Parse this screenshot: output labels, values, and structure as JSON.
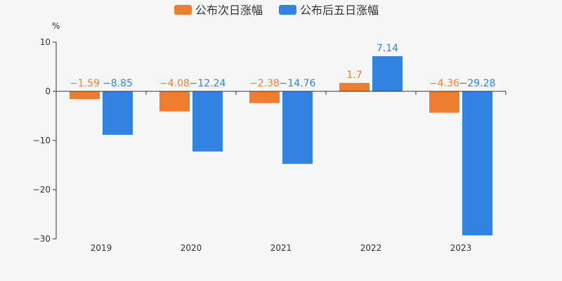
{
  "chart_data": {
    "type": "bar",
    "y_unit": "%",
    "categories": [
      "2019",
      "2020",
      "2021",
      "2022",
      "2023"
    ],
    "series": [
      {
        "name": "公布次日涨幅",
        "color": "#ed7d31",
        "values": [
          -1.59,
          -4.08,
          -2.38,
          1.7,
          -4.36
        ]
      },
      {
        "name": "公布后五日涨幅",
        "color": "#3282e2",
        "values": [
          -8.85,
          -12.24,
          -14.76,
          7.14,
          -29.28
        ]
      }
    ],
    "yticks": [
      10,
      0,
      -10,
      -20,
      -30
    ],
    "ylim": [
      -30,
      10
    ],
    "legend_position": "top-center",
    "grid": false
  }
}
